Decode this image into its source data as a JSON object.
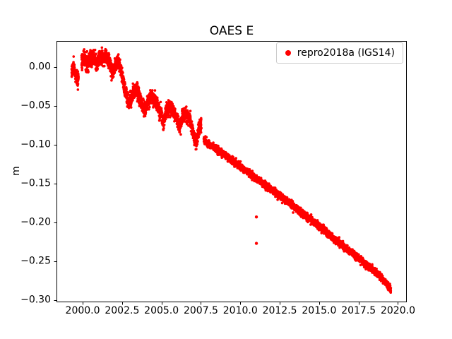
{
  "chart_data": {
    "type": "scatter",
    "title": "OAES E",
    "xlabel": "",
    "ylabel": "m",
    "grid": false,
    "legend_position": "upper right",
    "legend": [
      {
        "label": "repro2018a (IGS14)",
        "color": "#ff0000",
        "marker": "dot"
      }
    ],
    "xlim": [
      1998.34,
      2020.56
    ],
    "ylim": [
      -0.303,
      0.034
    ],
    "xticks": {
      "values": [
        2000.0,
        2002.5,
        2005.0,
        2007.5,
        2010.0,
        2012.5,
        2015.0,
        2017.5,
        2020.0
      ],
      "labels": [
        "2000.0",
        "2002.5",
        "2005.0",
        "2007.5",
        "2010.0",
        "2012.5",
        "2015.0",
        "2017.5",
        "2020.0"
      ]
    },
    "yticks": {
      "values": [
        0.0,
        -0.05,
        -0.1,
        -0.15,
        -0.2,
        -0.25,
        -0.3
      ],
      "labels": [
        "0.00",
        "−0.05",
        "−0.10",
        "−0.15",
        "−0.20",
        "−0.25",
        "−0.30"
      ]
    },
    "series": [
      {
        "name": "repro2018a (IGS14)",
        "color": "#ff0000",
        "marker_radius_px": 1.8,
        "sample_step_years": 0.0035,
        "trend_anchors": [
          [
            1999.3,
            -0.004
          ],
          [
            1999.42,
            0.002
          ],
          [
            1999.55,
            -0.01
          ],
          [
            1999.7,
            -0.016
          ],
          [
            1999.95,
            0.008
          ],
          [
            2000.1,
            0.013
          ],
          [
            2000.3,
            0.006
          ],
          [
            2000.5,
            0.011
          ],
          [
            2000.7,
            0.012
          ],
          [
            2000.9,
            0.004
          ],
          [
            2001.1,
            0.013
          ],
          [
            2001.3,
            0.011
          ],
          [
            2001.5,
            0.015
          ],
          [
            2001.7,
            0.006
          ],
          [
            2001.9,
            -0.007
          ],
          [
            2002.1,
            0.004
          ],
          [
            2002.3,
            0.01
          ],
          [
            2002.5,
            -0.012
          ],
          [
            2002.7,
            -0.03
          ],
          [
            2002.9,
            -0.046
          ],
          [
            2003.1,
            -0.04
          ],
          [
            2003.3,
            -0.028
          ],
          [
            2003.5,
            -0.033
          ],
          [
            2003.7,
            -0.044
          ],
          [
            2003.95,
            -0.056
          ],
          [
            2004.15,
            -0.044
          ],
          [
            2004.35,
            -0.037
          ],
          [
            2004.55,
            -0.041
          ],
          [
            2004.75,
            -0.047
          ],
          [
            2004.95,
            -0.06
          ],
          [
            2005.12,
            -0.072
          ],
          [
            2005.3,
            -0.056
          ],
          [
            2005.5,
            -0.05
          ],
          [
            2005.75,
            -0.056
          ],
          [
            2006.0,
            -0.068
          ],
          [
            2006.15,
            -0.078
          ],
          [
            2006.35,
            -0.063
          ],
          [
            2006.55,
            -0.06
          ],
          [
            2006.8,
            -0.067
          ],
          [
            2007.05,
            -0.088
          ],
          [
            2007.2,
            -0.098
          ],
          [
            2007.38,
            -0.08
          ],
          [
            2007.5,
            -0.074
          ],
          [
            2007.7,
            -0.094
          ],
          [
            2008.0,
            -0.099
          ],
          [
            2009.0,
            -0.113
          ],
          [
            2010.0,
            -0.128
          ],
          [
            2011.0,
            -0.143
          ],
          [
            2012.0,
            -0.158
          ],
          [
            2013.0,
            -0.173
          ],
          [
            2014.0,
            -0.189
          ],
          [
            2015.0,
            -0.205
          ],
          [
            2016.0,
            -0.222
          ],
          [
            2017.0,
            -0.238
          ],
          [
            2018.0,
            -0.255
          ],
          [
            2019.0,
            -0.272
          ],
          [
            2019.55,
            -0.287
          ]
        ],
        "gaps": [
          [
            1999.74,
            1999.93
          ],
          [
            2007.53,
            2007.68
          ]
        ],
        "noise_sd": [
          {
            "until": 2002.45,
            "sd": 0.0048
          },
          {
            "until": 2007.55,
            "sd": 0.0045
          },
          {
            "until": 2021.0,
            "sd": 0.0022
          }
        ],
        "outliers": [
          [
            2011.02,
            -0.193
          ],
          [
            2011.02,
            -0.227
          ]
        ]
      }
    ]
  }
}
